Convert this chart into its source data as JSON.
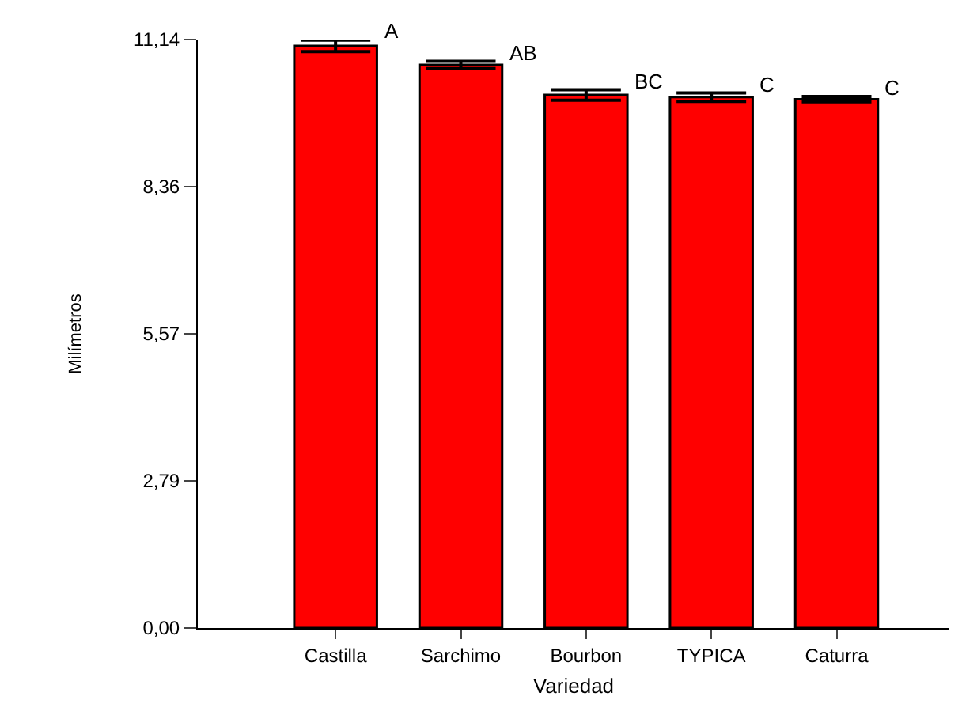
{
  "chart_data": {
    "type": "bar",
    "xlabel": "Variedad",
    "ylabel": "Milímetros",
    "categories": [
      "Castilla",
      "Sarchimo",
      "Bourbon",
      "TYPICA",
      "Caturra"
    ],
    "values": [
      11.02,
      10.66,
      10.09,
      10.05,
      10.01
    ],
    "errors": [
      0.11,
      0.07,
      0.1,
      0.08,
      0.05
    ],
    "color": "#ff0000",
    "ylim": [
      0,
      11.14
    ],
    "yticks": [
      {
        "value": 0,
        "label": "0,00"
      },
      {
        "value": 2.785,
        "label": "2,79"
      },
      {
        "value": 5.57,
        "label": "5,57"
      },
      {
        "value": 8.355,
        "label": "8,36"
      },
      {
        "value": 11.14,
        "label": "11,14"
      }
    ],
    "annotations": [
      {
        "text": "A",
        "x": "Castilla",
        "y": 11.13
      },
      {
        "text": "AB",
        "x": "Sarchimo",
        "y": 10.73
      },
      {
        "text": "BC",
        "x": "Bourbon",
        "y": 10.19
      },
      {
        "text": "C",
        "x": "TYPICA",
        "y": 10.13
      },
      {
        "text": "C",
        "x": "Caturra",
        "y": 10.06
      }
    ],
    "legend": false
  }
}
